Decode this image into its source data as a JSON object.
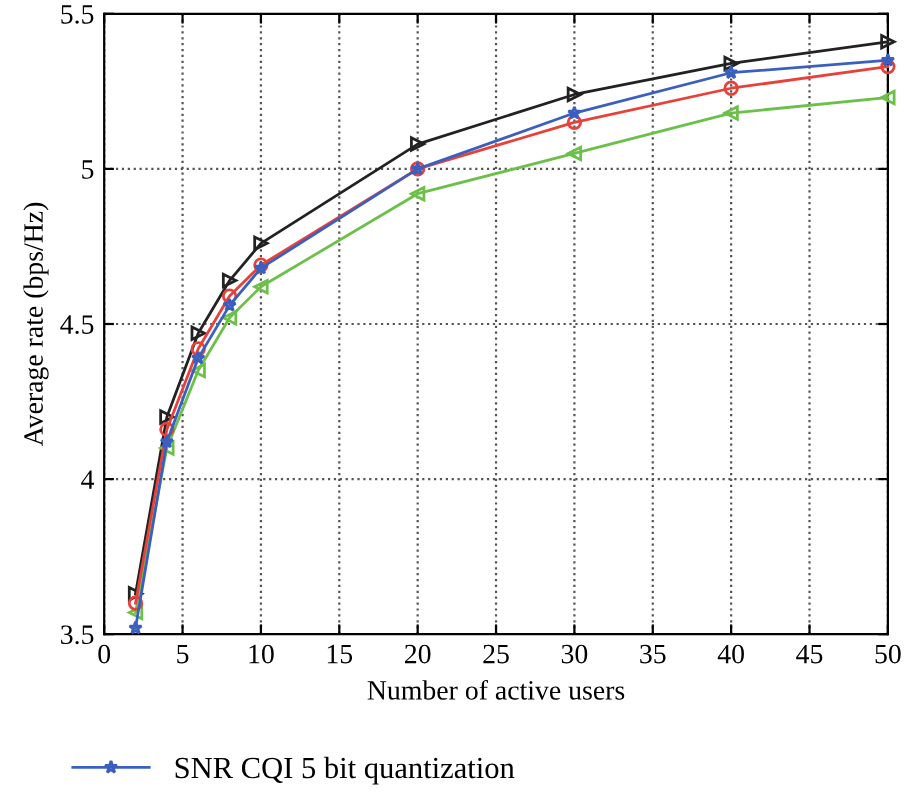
{
  "chart_data": {
    "type": "line",
    "xlabel": "Number of active users",
    "ylabel": "Average rate (bps/Hz)",
    "x": [
      2,
      4,
      6,
      8,
      10,
      20,
      30,
      40,
      50
    ],
    "series": [
      {
        "name": "SNR CQI 5 bit quantization",
        "color": "#3a5fbf",
        "marker": "star",
        "values": [
          3.52,
          4.12,
          4.39,
          4.56,
          4.68,
          5.0,
          5.18,
          5.31,
          5.35
        ]
      },
      {
        "color": "#e8413a",
        "marker": "circle",
        "values": [
          3.6,
          4.16,
          4.42,
          4.59,
          4.69,
          5.0,
          5.15,
          5.26,
          5.33
        ]
      },
      {
        "color": "#6cc04a",
        "marker": "triangle_left",
        "values": [
          3.57,
          4.1,
          4.35,
          4.52,
          4.62,
          4.92,
          5.05,
          5.18,
          5.23
        ]
      },
      {
        "color": "#222222",
        "marker": "triangle_right",
        "values": [
          3.63,
          4.2,
          4.47,
          4.64,
          4.76,
          5.08,
          5.24,
          5.34,
          5.41
        ]
      }
    ],
    "xlim": [
      0,
      50
    ],
    "xticks": [
      0,
      5,
      10,
      15,
      20,
      25,
      30,
      35,
      40,
      45,
      50
    ],
    "ylim": [
      3.5,
      5.5
    ],
    "yticks": [
      3.5,
      4,
      4.5,
      5,
      5.5
    ],
    "grid": true,
    "legend": "bottom",
    "line_style": "solid"
  }
}
